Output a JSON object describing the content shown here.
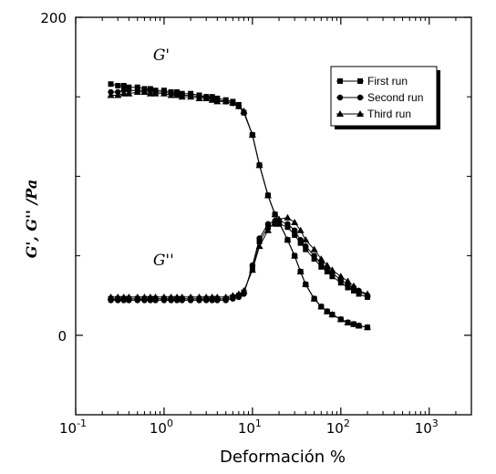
{
  "chart_data": {
    "type": "line",
    "title": "",
    "xlabel": "Deformación %",
    "ylabel": "G', G'' /Pa",
    "xscale": "log",
    "xlim": [
      0.1,
      3000
    ],
    "ylim": [
      -50,
      200
    ],
    "x_ticks": [
      {
        "base": "10",
        "exp": "-1",
        "value": 0.1
      },
      {
        "base": "10",
        "exp": "0",
        "value": 1
      },
      {
        "base": "10",
        "exp": "1",
        "value": 10
      },
      {
        "base": "10",
        "exp": "2",
        "value": 100
      },
      {
        "base": "10",
        "exp": "3",
        "value": 1000
      }
    ],
    "y_ticks": [
      {
        "label": "0",
        "value": 0
      },
      {
        "label": "200",
        "value": 200
      }
    ],
    "grid": false,
    "legend": {
      "position": "top-right",
      "entries": [
        {
          "name": "First run",
          "marker": "square"
        },
        {
          "name": "Second run",
          "marker": "circle"
        },
        {
          "name": "Third run",
          "marker": "triangle"
        }
      ]
    },
    "annotations": [
      {
        "text": "G'",
        "x": 0.75,
        "y": 173
      },
      {
        "text": "G''",
        "x": 0.75,
        "y": 44
      }
    ],
    "x": [
      0.25,
      0.3,
      0.35,
      0.4,
      0.5,
      0.6,
      0.7,
      0.8,
      1.0,
      1.2,
      1.4,
      1.6,
      2.0,
      2.5,
      3.0,
      3.5,
      4.0,
      5.0,
      6.0,
      7.0,
      8.0,
      10,
      12,
      15,
      18,
      20,
      25,
      30,
      35,
      40,
      50,
      60,
      70,
      80,
      100,
      120,
      140,
      160,
      200
    ],
    "series": [
      {
        "name": "First run",
        "curve": "G'",
        "marker": "square",
        "values": [
          158,
          157,
          157,
          156,
          156,
          155,
          155,
          154,
          154,
          153,
          153,
          152,
          152,
          151,
          150,
          150,
          149,
          148,
          147,
          145,
          140,
          126,
          107,
          88,
          76,
          71,
          60,
          50,
          40,
          32,
          23,
          18,
          15,
          13,
          10,
          8,
          7,
          6,
          5
        ]
      },
      {
        "name": "Second run",
        "curve": "G'",
        "marker": "circle",
        "values": [
          153,
          153,
          154,
          154,
          154,
          154,
          154,
          153,
          153,
          152,
          152,
          151,
          151,
          150,
          150,
          149,
          148,
          147,
          146,
          144,
          140,
          126,
          107,
          88,
          76,
          71,
          60,
          50,
          40,
          32,
          23,
          18,
          15,
          13,
          10,
          8,
          7,
          6,
          5
        ]
      },
      {
        "name": "Third run",
        "curve": "G'",
        "marker": "triangle",
        "values": [
          151,
          151,
          152,
          152,
          153,
          153,
          152,
          152,
          152,
          151,
          151,
          150,
          150,
          149,
          149,
          148,
          147,
          147,
          146,
          144,
          141,
          126,
          107,
          88,
          76,
          71,
          60,
          50,
          40,
          32,
          23,
          18,
          15,
          13,
          10,
          8,
          7,
          6,
          5
        ]
      },
      {
        "name": "First run",
        "curve": "G''",
        "marker": "square",
        "values": [
          23,
          23,
          23,
          23,
          23,
          23,
          23,
          23,
          23,
          23,
          23,
          23,
          23,
          23,
          23,
          23,
          23,
          23,
          24,
          25,
          27,
          42,
          59,
          68,
          70,
          70,
          68,
          63,
          58,
          54,
          48,
          43,
          40,
          37,
          33,
          30,
          28,
          26,
          24
        ]
      },
      {
        "name": "Second run",
        "curve": "G''",
        "marker": "circle",
        "values": [
          22,
          22,
          22,
          22,
          22,
          22,
          22,
          22,
          22,
          22,
          22,
          22,
          22,
          22,
          22,
          22,
          22,
          22,
          23,
          24,
          26,
          44,
          61,
          70,
          72,
          72,
          70,
          66,
          60,
          56,
          50,
          45,
          42,
          39,
          35,
          32,
          30,
          28,
          25
        ]
      },
      {
        "name": "Third run",
        "curve": "G''",
        "marker": "triangle",
        "values": [
          24,
          24,
          24,
          24,
          24,
          24,
          24,
          24,
          24,
          24,
          24,
          24,
          24,
          24,
          24,
          24,
          24,
          24,
          25,
          26,
          28,
          41,
          56,
          66,
          72,
          73,
          74,
          71,
          66,
          60,
          54,
          48,
          44,
          41,
          37,
          34,
          31,
          28,
          26
        ]
      }
    ]
  }
}
